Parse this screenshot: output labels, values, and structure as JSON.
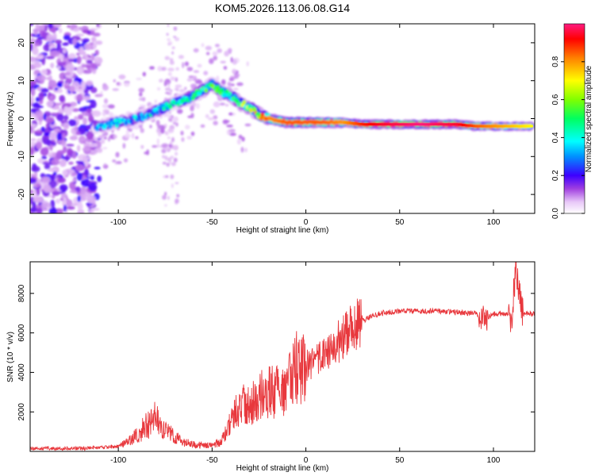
{
  "figure": {
    "title": "KOM5.2026.113.06.08.G14"
  },
  "chart_data": [
    {
      "type": "heatmap",
      "name": "spectrogram",
      "title": "KOM5.2026.113.06.08.G14",
      "xlabel": "Height of straight line (km)",
      "ylabel": "Frequency (Hz)",
      "xlim": [
        -147,
        122
      ],
      "ylim": [
        -25,
        25
      ],
      "xticks": [
        -100,
        -50,
        0,
        50,
        100
      ],
      "yticks": [
        -20,
        -10,
        0,
        10,
        20
      ],
      "ridge": {
        "description": "dominant spectral component (frequency vs height)",
        "x": [
          -110,
          -100,
          -90,
          -80,
          -70,
          -60,
          -50,
          -45,
          -40,
          -35,
          -30,
          -25,
          -20,
          -10,
          0,
          10,
          20,
          30,
          40,
          60,
          80,
          90,
          100,
          110,
          120
        ],
        "freq": [
          -2,
          -1,
          0,
          2,
          4,
          6,
          9,
          7,
          6,
          4,
          3,
          1,
          0,
          -1,
          -1,
          -1,
          -1,
          -1.5,
          -1.5,
          -1.5,
          -1.5,
          -2,
          -2,
          -2,
          -2
        ],
        "amplitude": [
          0.3,
          0.35,
          0.35,
          0.4,
          0.4,
          0.45,
          0.5,
          0.55,
          0.5,
          0.55,
          0.6,
          0.7,
          0.8,
          0.85,
          0.85,
          0.85,
          0.8,
          0.9,
          0.95,
          1.0,
          0.95,
          0.85,
          0.8,
          0.75,
          0.7
        ]
      },
      "noise_region_x": [
        -147,
        -110
      ],
      "colorbar": {
        "label": "Normalized spectral amplitude",
        "range": [
          0,
          1
        ],
        "ticks": [
          "0.0",
          "0.2",
          "0.4",
          "0.6",
          "0.8"
        ],
        "tick_values": [
          0,
          0.2,
          0.4,
          0.6,
          0.8
        ]
      }
    },
    {
      "type": "line",
      "name": "snr",
      "xlabel": "Height of straight line (km)",
      "ylabel": "SNR (10 * v/v)",
      "xlim": [
        -147,
        122
      ],
      "ylim": [
        0,
        9600
      ],
      "xticks": [
        -100,
        -50,
        0,
        50,
        100
      ],
      "yticks": [
        2000,
        4000,
        6000,
        8000
      ],
      "color": "#e8383d",
      "series": [
        {
          "name": "SNR",
          "x": [
            -147,
            -120,
            -110,
            -100,
            -95,
            -90,
            -85,
            -80,
            -75,
            -70,
            -65,
            -60,
            -55,
            -50,
            -45,
            -40,
            -35,
            -30,
            -25,
            -20,
            -15,
            -10,
            -5,
            0,
            5,
            10,
            15,
            20,
            25,
            30,
            35,
            40,
            50,
            60,
            70,
            80,
            90,
            95,
            100,
            105,
            110,
            112,
            115,
            122
          ],
          "y": [
            150,
            150,
            200,
            250,
            500,
            800,
            1300,
            1700,
            1100,
            700,
            450,
            350,
            300,
            300,
            500,
            1500,
            2400,
            2300,
            2800,
            3000,
            3000,
            3300,
            4200,
            4300,
            4500,
            4800,
            5300,
            5800,
            6300,
            6600,
            6850,
            7000,
            7100,
            7100,
            7100,
            7050,
            7000,
            6700,
            6950,
            7000,
            6900,
            9500,
            7000,
            6950
          ]
        }
      ]
    }
  ]
}
